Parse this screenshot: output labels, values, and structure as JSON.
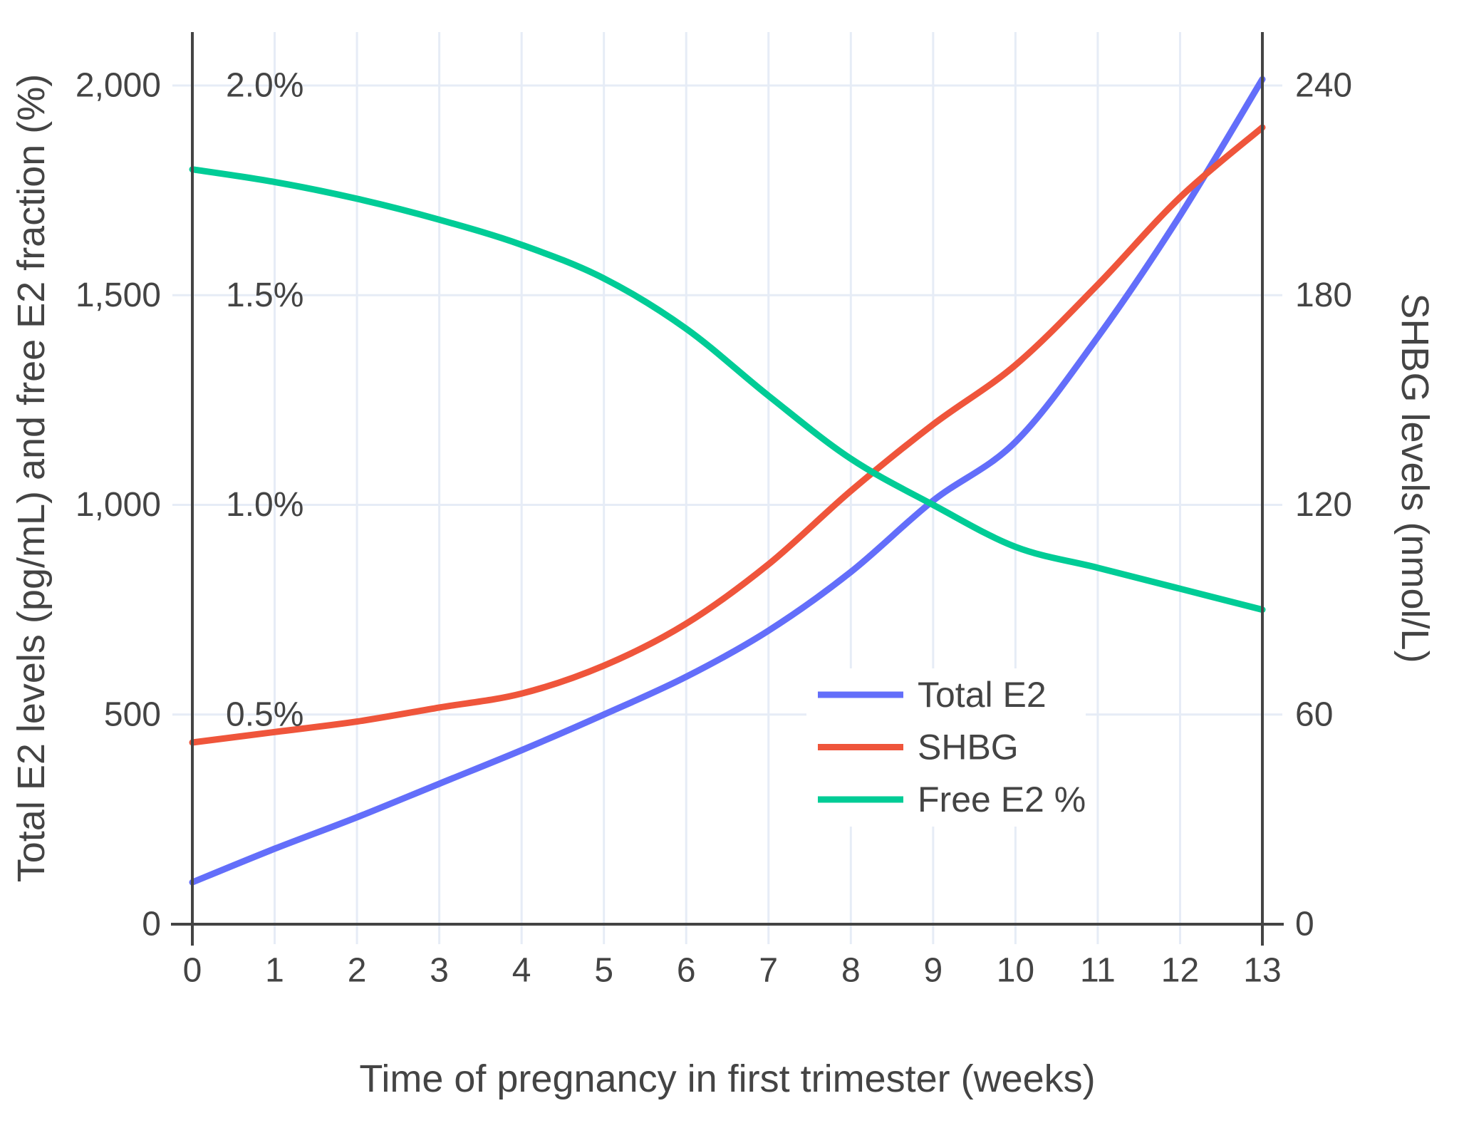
{
  "chart_data": {
    "type": "line",
    "title": "",
    "xlabel": "Time of pregnancy in first trimester (weeks)",
    "ylabel_left": "Total E2 levels (pg/mL) and free E2 fraction (%)",
    "ylabel_right": "SHBG levels (nmol/L)",
    "x": [
      0,
      1,
      2,
      3,
      4,
      5,
      6,
      7,
      8,
      9,
      10,
      11,
      12,
      13
    ],
    "x_tick_labels": [
      "0",
      "1",
      "2",
      "3",
      "4",
      "5",
      "6",
      "7",
      "8",
      "9",
      "10",
      "11",
      "12",
      "13"
    ],
    "left_axis": {
      "tick_values": [
        0,
        500,
        1000,
        1500,
        2000
      ],
      "tick_labels": [
        "0",
        "500",
        "1,000",
        "1,500",
        "2,000"
      ],
      "range": [
        0,
        2130
      ]
    },
    "percent_annotations": {
      "tick_labels": [
        "0.5%",
        "1.0%",
        "1.5%",
        "2.0%"
      ],
      "tick_values_pct": [
        0.5,
        1.0,
        1.5,
        2.0
      ]
    },
    "right_axis": {
      "tick_values": [
        0,
        60,
        120,
        180,
        240
      ],
      "tick_labels": [
        "0",
        "60",
        "120",
        "180",
        "240"
      ],
      "range": [
        0,
        245
      ]
    },
    "series": [
      {
        "name": "Total E2",
        "unit": "pg/mL",
        "axis": "left",
        "color": "#636EFA",
        "values": [
          100,
          180,
          255,
          335,
          415,
          500,
          590,
          700,
          840,
          1010,
          1150,
          1400,
          1690,
          2015
        ]
      },
      {
        "name": "SHBG",
        "unit": "nmol/L",
        "axis": "right",
        "color": "#EF553B",
        "values": [
          52,
          55,
          58,
          62,
          66,
          74,
          86,
          103,
          124,
          143,
          160,
          183,
          208,
          228
        ]
      },
      {
        "name": "Free E2 %",
        "unit": "%",
        "axis": "percent",
        "color": "#00CC96",
        "values": [
          1.8,
          1.77,
          1.73,
          1.68,
          1.62,
          1.54,
          1.42,
          1.26,
          1.11,
          1.0,
          0.9,
          0.85,
          0.8,
          0.75
        ]
      }
    ],
    "legend": {
      "entries": [
        "Total E2",
        "SHBG",
        "Free E2 %"
      ],
      "position": "inside lower-right"
    },
    "grid": true
  },
  "style": {
    "background": "#FFFFFF",
    "grid_color": "#E6ECF6",
    "axis_line_color": "#444444",
    "text_color": "#444444",
    "legend_background": "#FFFFFF"
  }
}
